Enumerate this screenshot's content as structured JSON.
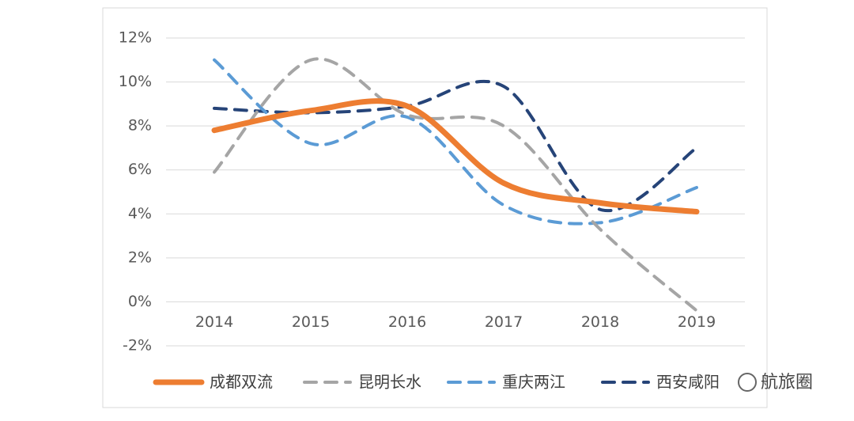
{
  "chart_data": {
    "type": "line",
    "categories": [
      "2014",
      "2015",
      "2016",
      "2017",
      "2018",
      "2019"
    ],
    "series": [
      {
        "name": "成都双流",
        "color": "#ed7d31",
        "dash": "solid",
        "values": [
          7.8,
          8.7,
          8.9,
          5.4,
          4.5,
          4.1
        ]
      },
      {
        "name": "昆明长水",
        "color": "#a5a5a5",
        "dash": "dashed",
        "values": [
          5.9,
          11.0,
          8.5,
          8.0,
          3.3,
          -0.4
        ]
      },
      {
        "name": "重庆两江",
        "color": "#5b9bd5",
        "dash": "dashed",
        "values": [
          11.0,
          7.2,
          8.4,
          4.4,
          3.6,
          5.2
        ]
      },
      {
        "name": "西安咸阳",
        "color": "#264478",
        "dash": "dashed",
        "values": [
          8.8,
          8.6,
          8.9,
          9.8,
          4.2,
          7.0
        ]
      }
    ],
    "ylim": [
      -2,
      12
    ],
    "yticks": [
      {
        "value": -2,
        "label": "-2%"
      },
      {
        "value": 0,
        "label": "0%"
      },
      {
        "value": 2,
        "label": "2%"
      },
      {
        "value": 4,
        "label": "4%"
      },
      {
        "value": 6,
        "label": "6%"
      },
      {
        "value": 8,
        "label": "8%"
      },
      {
        "value": 10,
        "label": "10%"
      },
      {
        "value": 12,
        "label": "12%"
      }
    ],
    "grid": true,
    "smooth": true,
    "legend": "bottom",
    "watermark": "航旅圈"
  }
}
